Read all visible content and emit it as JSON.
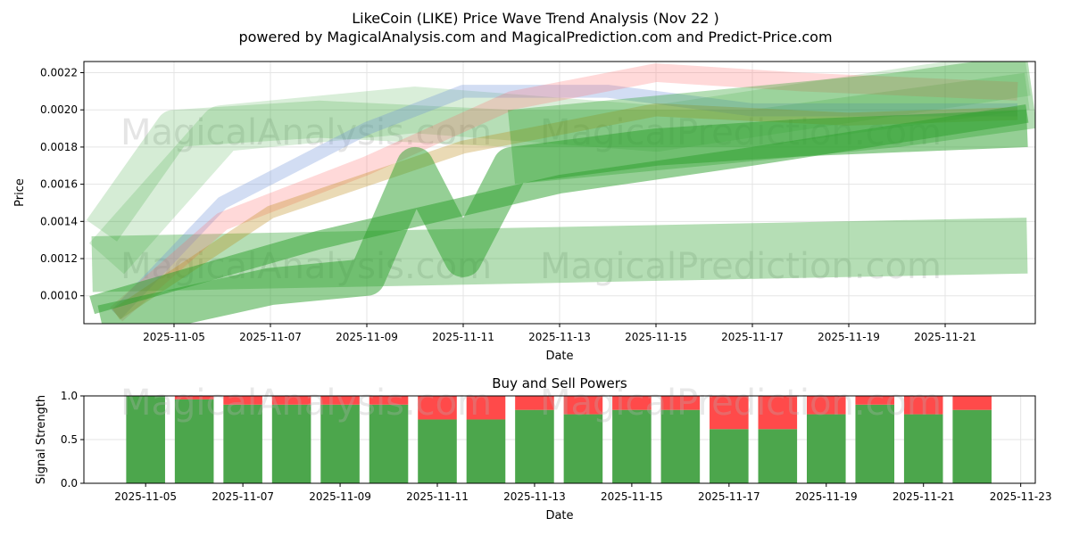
{
  "title": "LikeCoin (LIKE) Price Wave Trend Analysis (Nov 22 )",
  "subtitle": "powered by MagicalAnalysis.com and MagicalPrediction.com and Predict-Price.com",
  "watermarks": [
    "MagicalAnalysis.com",
    "MagicalPrediction.com"
  ],
  "chart_data": [
    {
      "type": "line",
      "title": "",
      "xlabel": "Date",
      "ylabel": "Price",
      "ylim": [
        0.00085,
        0.00226
      ],
      "xlim_days_from_nov1": [
        3.13,
        22.87
      ],
      "xticks": [
        "2025-11-05",
        "2025-11-07",
        "2025-11-09",
        "2025-11-11",
        "2025-11-13",
        "2025-11-15",
        "2025-11-17",
        "2025-11-19",
        "2025-11-21"
      ],
      "yticks": [
        "0.0010",
        "0.0012",
        "0.0014",
        "0.0016",
        "0.0018",
        "0.0020",
        "0.0022"
      ],
      "grid": true,
      "series": [
        {
          "name": "wave-green-flat",
          "color": "#2ca02c",
          "opacity": 0.35,
          "thickness": 0.0003,
          "points": [
            [
              3.3,
              0.00117
            ],
            [
              22.7,
              0.00127
            ]
          ]
        },
        {
          "name": "wave-green-upper",
          "color": "#2ca02c",
          "opacity": 0.2,
          "thickness": 0.0002,
          "points": [
            [
              3.5,
              0.00135
            ],
            [
              5,
              0.0019
            ],
            [
              8,
              0.00195
            ],
            [
              12,
              0.0019
            ],
            [
              17,
              0.0019
            ],
            [
              22.7,
              0.0021
            ]
          ]
        },
        {
          "name": "wave-green-upper2",
          "color": "#2ca02c",
          "opacity": 0.18,
          "thickness": 0.00025,
          "points": [
            [
              3.6,
              0.0012
            ],
            [
              6,
              0.0019
            ],
            [
              10,
              0.002
            ],
            [
              15,
              0.0019
            ],
            [
              22.7,
              0.0022
            ]
          ]
        },
        {
          "name": "wave-blue",
          "color": "#6a8fd8",
          "opacity": 0.3,
          "thickness": 7e-05,
          "points": [
            [
              3.8,
              0.0009
            ],
            [
              6,
              0.0015
            ],
            [
              9,
              0.0019
            ],
            [
              11,
              0.0021
            ],
            [
              14,
              0.0021
            ],
            [
              17,
              0.002
            ],
            [
              22.5,
              0.002
            ]
          ]
        },
        {
          "name": "wave-red",
          "color": "#ff6666",
          "opacity": 0.25,
          "thickness": 0.0001,
          "points": [
            [
              3.8,
              0.0009
            ],
            [
              6,
              0.0014
            ],
            [
              9,
              0.0017
            ],
            [
              12,
              0.00205
            ],
            [
              15,
              0.0022
            ],
            [
              18,
              0.00215
            ],
            [
              22.5,
              0.0021
            ]
          ]
        },
        {
          "name": "wave-orange",
          "color": "#b8860b",
          "opacity": 0.3,
          "thickness": 7e-05,
          "points": [
            [
              3.8,
              0.0009
            ],
            [
              7,
              0.00145
            ],
            [
              11,
              0.0018
            ],
            [
              15,
              0.002
            ],
            [
              19,
              0.00195
            ],
            [
              22.5,
              0.00198
            ]
          ]
        },
        {
          "name": "wave-green-big",
          "color": "#2ca02c",
          "opacity": 0.35,
          "thickness": 0.0004,
          "points": [
            [
              12,
              0.0018
            ],
            [
              16,
              0.0019
            ],
            [
              20,
              0.002
            ],
            [
              22.8,
              0.0021
            ]
          ]
        },
        {
          "name": "wave-green-spike",
          "color": "#2ca02c",
          "opacity": 0.5,
          "thickness": 0.0002,
          "points": [
            [
              3.5,
              0.00085
            ],
            [
              7,
              0.00105
            ],
            [
              9,
              0.0011
            ],
            [
              10,
              0.0017
            ],
            [
              11,
              0.0012
            ],
            [
              12,
              0.0017
            ],
            [
              15,
              0.0018
            ],
            [
              18,
              0.00185
            ],
            [
              22.7,
              0.0019
            ]
          ]
        },
        {
          "name": "wave-green-rising",
          "color": "#2ca02c",
          "opacity": 0.5,
          "thickness": 0.0001,
          "points": [
            [
              3.3,
              0.00095
            ],
            [
              8,
              0.0013
            ],
            [
              13,
              0.0016
            ],
            [
              17,
              0.00175
            ],
            [
              22.7,
              0.00198
            ]
          ]
        }
      ]
    },
    {
      "type": "bar",
      "title": "Buy and Sell Powers",
      "xlabel": "Date",
      "ylabel": "Signal Strength",
      "ylim": [
        0,
        1
      ],
      "yticks": [
        "0.0",
        "0.5",
        "1.0"
      ],
      "xticks": [
        "2025-11-05",
        "2025-11-07",
        "2025-11-09",
        "2025-11-11",
        "2025-11-13",
        "2025-11-15",
        "2025-11-17",
        "2025-11-19",
        "2025-11-21",
        "2025-11-23"
      ],
      "categories": [
        "2025-11-05",
        "2025-11-06",
        "2025-11-07",
        "2025-11-08",
        "2025-11-09",
        "2025-11-10",
        "2025-11-11",
        "2025-11-12",
        "2025-11-13",
        "2025-11-14",
        "2025-11-15",
        "2025-11-16",
        "2025-11-17",
        "2025-11-18",
        "2025-11-19",
        "2025-11-20",
        "2025-11-21",
        "2025-11-22"
      ],
      "series": [
        {
          "name": "Buy",
          "color": "#4ca64c",
          "values": [
            1.0,
            0.96,
            0.9,
            0.9,
            0.9,
            0.9,
            0.73,
            0.73,
            0.84,
            0.79,
            0.84,
            0.84,
            0.62,
            0.62,
            0.79,
            0.9,
            0.79,
            0.84
          ]
        },
        {
          "name": "Sell",
          "color": "#ff4a4a",
          "values": [
            0.0,
            0.04,
            0.1,
            0.1,
            0.1,
            0.1,
            0.27,
            0.27,
            0.16,
            0.21,
            0.16,
            0.16,
            0.38,
            0.38,
            0.21,
            0.1,
            0.21,
            0.16
          ]
        }
      ]
    }
  ]
}
